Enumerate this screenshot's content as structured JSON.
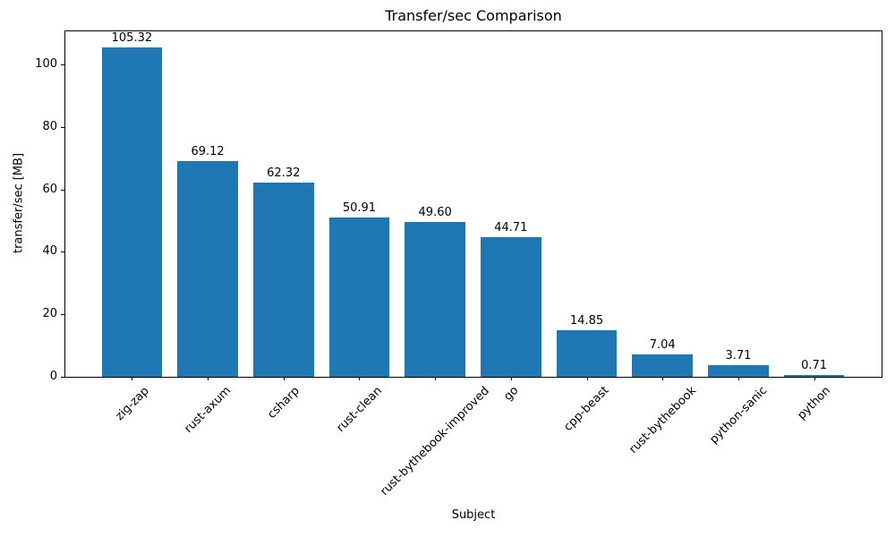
{
  "chart_data": {
    "type": "bar",
    "title": "Transfer/sec Comparison",
    "xlabel": "Subject",
    "ylabel": "transfer/sec [MB]",
    "categories": [
      "zig-zap",
      "rust-axum",
      "csharp",
      "rust-clean",
      "rust-bythebook-improved",
      "go",
      "cpp-beast",
      "rust-bythebook",
      "python-sanic",
      "python"
    ],
    "values": [
      105.32,
      69.12,
      62.32,
      50.91,
      49.6,
      44.71,
      14.85,
      7.04,
      3.71,
      0.71
    ],
    "value_labels": [
      "105.32",
      "69.12",
      "62.32",
      "50.91",
      "49.60",
      "44.71",
      "14.85",
      "7.04",
      "3.71",
      "0.71"
    ],
    "yticks": [
      0,
      20,
      40,
      60,
      80,
      100
    ],
    "ylim": [
      0,
      110.9
    ],
    "x_tick_rotation": 45,
    "grid": false,
    "legend_position": null,
    "bar_color": "#1f77b4",
    "text_color": "#000000",
    "background_color": "#ffffff"
  }
}
